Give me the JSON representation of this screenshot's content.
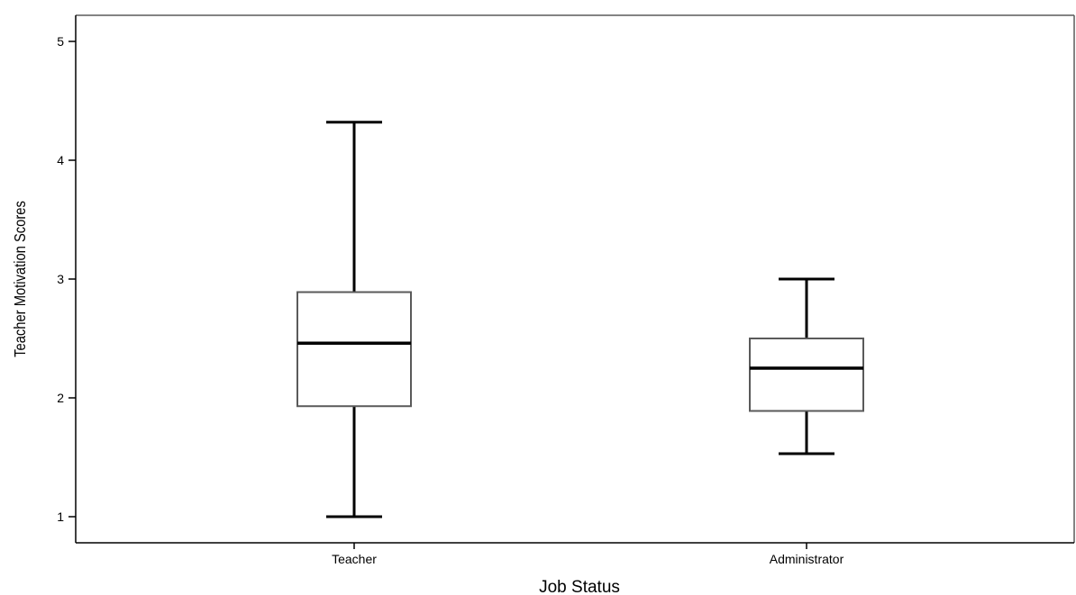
{
  "chart_data": {
    "type": "boxplot",
    "title": "",
    "xlabel": "Job Status",
    "ylabel": "Teacher Motivation Scores",
    "ylim": [
      0.8,
      5.2
    ],
    "yticks": [
      1,
      2,
      3,
      4,
      5
    ],
    "categories": [
      "Teacher",
      "Administrator"
    ],
    "boxes": [
      {
        "category": "Teacher",
        "min": 1.0,
        "q1": 1.93,
        "median": 2.46,
        "q3": 2.89,
        "max": 4.32
      },
      {
        "category": "Administrator",
        "min": 1.53,
        "q1": 1.89,
        "median": 2.25,
        "q3": 2.5,
        "max": 3.0
      }
    ],
    "grid": false,
    "colors": {
      "box_fill": "#ffffff",
      "stroke": "#000000",
      "frame": "#5a5a5a"
    }
  }
}
